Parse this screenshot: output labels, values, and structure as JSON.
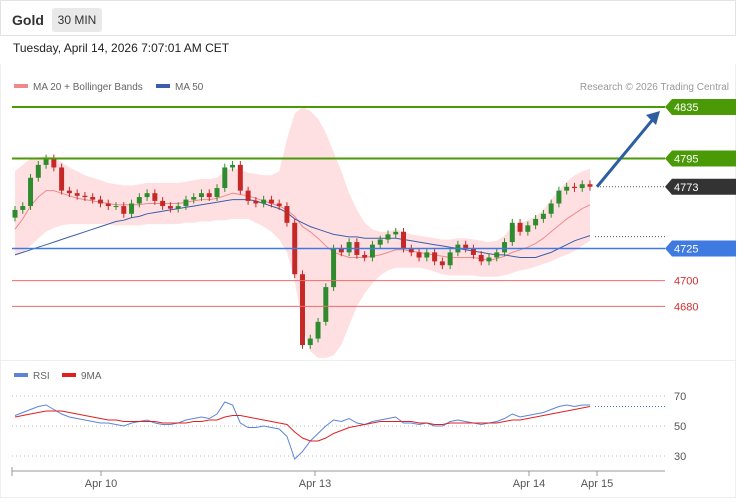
{
  "header": {
    "title": "Gold",
    "timeframe": "30 MIN"
  },
  "date": "Tuesday, April 14, 2026 7:07:01 AM CET",
  "credit": "Research © 2026 Trading Central",
  "colors": {
    "up": "#2e8b2e",
    "down": "#c62828",
    "resistance": "#4a9a08",
    "support": "#3e7ae0",
    "weak": "#ee6b6b",
    "band": "#ffd6d8",
    "ma20": "#f08a8a",
    "ma50": "#3a5fa8",
    "arrow": "#2d5fa0"
  },
  "chart_data": [
    {
      "type": "candlestick",
      "legend": [
        {
          "name": "MA 20 + Bollinger Bands",
          "color": "#f08a8a"
        },
        {
          "name": "MA 50",
          "color": "#3a5fa8"
        }
      ],
      "levels": [
        {
          "value": 4835,
          "label": "4835",
          "kind": "resistance"
        },
        {
          "value": 4795,
          "label": "4795",
          "kind": "resistance"
        },
        {
          "value": 4773,
          "label": "4773",
          "kind": "last"
        },
        {
          "value": 4725,
          "label": "4725",
          "kind": "support"
        },
        {
          "value": 4700,
          "label": "4700",
          "kind": "weak"
        },
        {
          "value": 4680,
          "label": "4680",
          "kind": "weak"
        }
      ],
      "close": [
        4755,
        4758,
        4780,
        4790,
        4795,
        4788,
        4770,
        4768,
        4766,
        4765,
        4763,
        4760,
        4758,
        4758,
        4752,
        4760,
        4765,
        4768,
        4762,
        4758,
        4756,
        4758,
        4763,
        4765,
        4768,
        4765,
        4772,
        4788,
        4790,
        4770,
        4762,
        4760,
        4763,
        4760,
        4758,
        4745,
        4705,
        4650,
        4655,
        4668,
        4695,
        4725,
        4722,
        4730,
        4720,
        4718,
        4728,
        4732,
        4736,
        4738,
        4725,
        4722,
        4718,
        4722,
        4715,
        4712,
        4722,
        4728,
        4725,
        4720,
        4715,
        4718,
        4722,
        4730,
        4745,
        4738,
        4743,
        4748,
        4752,
        4760,
        4770,
        4773,
        4772,
        4775,
        4773
      ],
      "bb_upper": [
        4785,
        4790,
        4795,
        4796,
        4797,
        4796,
        4792,
        4788,
        4785,
        4782,
        4780,
        4778,
        4776,
        4775,
        4774,
        4774,
        4775,
        4776,
        4776,
        4776,
        4776,
        4776,
        4777,
        4778,
        4779,
        4779,
        4780,
        4785,
        4788,
        4786,
        4784,
        4783,
        4782,
        4782,
        4785,
        4810,
        4830,
        4835,
        4832,
        4826,
        4815,
        4800,
        4785,
        4768,
        4755,
        4745,
        4740,
        4738,
        4738,
        4740,
        4738,
        4736,
        4735,
        4734,
        4733,
        4732,
        4732,
        4733,
        4733,
        4732,
        4731,
        4730,
        4731,
        4735,
        4742,
        4744,
        4747,
        4750,
        4755,
        4763,
        4770,
        4777,
        4782,
        4785,
        4787
      ],
      "bb_lower": [
        4720,
        4722,
        4727,
        4733,
        4738,
        4741,
        4743,
        4744,
        4744,
        4744,
        4744,
        4744,
        4744,
        4743,
        4743,
        4743,
        4743,
        4744,
        4744,
        4744,
        4744,
        4744,
        4745,
        4745,
        4746,
        4746,
        4747,
        4747,
        4748,
        4748,
        4748,
        4745,
        4742,
        4738,
        4732,
        4722,
        4700,
        4665,
        4645,
        4640,
        4640,
        4642,
        4650,
        4665,
        4680,
        4690,
        4698,
        4704,
        4708,
        4710,
        4710,
        4710,
        4710,
        4709,
        4707,
        4705,
        4704,
        4704,
        4704,
        4704,
        4703,
        4703,
        4703,
        4704,
        4706,
        4708,
        4709,
        4711,
        4713,
        4715,
        4718,
        4720,
        4723,
        4727,
        4731
      ],
      "ma20": [
        4740,
        4748,
        4758,
        4765,
        4770,
        4770,
        4768,
        4766,
        4764,
        4763,
        4762,
        4761,
        4760,
        4759,
        4759,
        4759,
        4759,
        4760,
        4760,
        4760,
        4760,
        4760,
        4761,
        4762,
        4763,
        4763,
        4764,
        4766,
        4768,
        4767,
        4766,
        4764,
        4762,
        4760,
        4758,
        4755,
        4750,
        4742,
        4738,
        4733,
        4727,
        4722,
        4720,
        4718,
        4718,
        4718,
        4719,
        4720,
        4722,
        4724,
        4724,
        4723,
        4722,
        4721,
        4720,
        4719,
        4718,
        4718,
        4718,
        4718,
        4717,
        4716,
        4717,
        4719,
        4722,
        4724,
        4726,
        4729,
        4733,
        4738,
        4743,
        4748,
        4752,
        4756,
        4759
      ],
      "ma50": [
        4720,
        4722,
        4724,
        4726,
        4728,
        4730,
        4732,
        4734,
        4736,
        4738,
        4740,
        4742,
        4744,
        4746,
        4747,
        4749,
        4750,
        4752,
        4753,
        4754,
        4755,
        4756,
        4757,
        4758,
        4759,
        4760,
        4761,
        4762,
        4763,
        4763,
        4763,
        4762,
        4760,
        4758,
        4756,
        4753,
        4748,
        4745,
        4742,
        4740,
        4738,
        4736,
        4735,
        4734,
        4734,
        4733,
        4733,
        4733,
        4733,
        4733,
        4732,
        4731,
        4730,
        4729,
        4728,
        4727,
        4726,
        4725,
        4724,
        4723,
        4722,
        4721,
        4720,
        4720,
        4719,
        4718,
        4718,
        4718,
        4720,
        4722,
        4725,
        4728,
        4731,
        4733,
        4735
      ]
    },
    {
      "type": "line",
      "legend": [
        {
          "name": "RSI",
          "color": "#5b84d8"
        },
        {
          "name": "9MA",
          "color": "#e02020"
        }
      ],
      "ylim": [
        20,
        80
      ],
      "yticks": [
        70,
        50,
        30
      ],
      "xticks": [
        "Apr 10",
        "Apr 13",
        "Apr 14",
        "Apr 15"
      ],
      "rsi": [
        57,
        59,
        61,
        63,
        64,
        61,
        58,
        56,
        55,
        54,
        53,
        52,
        52,
        51,
        50,
        52,
        53,
        54,
        52,
        51,
        51,
        52,
        54,
        55,
        56,
        55,
        58,
        66,
        64,
        52,
        49,
        49,
        50,
        49,
        48,
        43,
        28,
        33,
        40,
        45,
        50,
        54,
        53,
        55,
        52,
        51,
        53,
        54,
        55,
        56,
        52,
        52,
        51,
        52,
        50,
        50,
        53,
        54,
        53,
        52,
        51,
        52,
        53,
        55,
        58,
        56,
        57,
        58,
        59,
        61,
        63,
        64,
        63,
        64,
        64
      ],
      "rsi_ma": [
        56,
        57,
        58,
        59,
        60,
        60,
        60,
        59,
        58,
        57,
        56,
        55,
        54,
        54,
        53,
        53,
        53,
        53,
        53,
        52,
        52,
        52,
        52,
        53,
        53,
        54,
        54,
        56,
        57,
        57,
        56,
        55,
        54,
        53,
        52,
        51,
        46,
        42,
        40,
        40,
        42,
        45,
        47,
        49,
        50,
        51,
        52,
        53,
        53,
        53,
        53,
        53,
        52,
        52,
        51,
        51,
        52,
        52,
        52,
        52,
        52,
        52,
        52,
        53,
        54,
        54,
        55,
        56,
        57,
        58,
        59,
        60,
        61,
        62,
        63
      ]
    }
  ]
}
